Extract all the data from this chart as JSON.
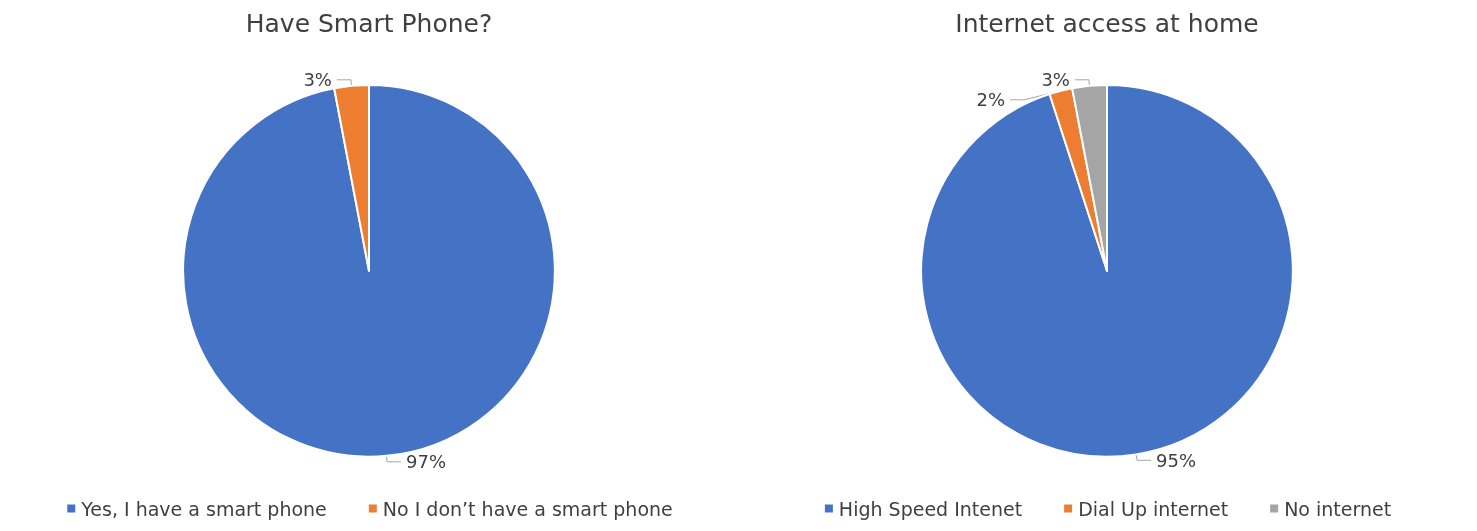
{
  "chart_data": [
    {
      "type": "pie",
      "title": "Have Smart Phone?",
      "categories": [
        "Yes, I have a smart phone",
        "No I don’t have a smart phone"
      ],
      "values": [
        97,
        3
      ],
      "colors": [
        "#4472c4",
        "#ed7d31"
      ],
      "value_labels": [
        "97%",
        "3%"
      ],
      "legend": "bottom"
    },
    {
      "type": "pie",
      "title": "Internet access at home",
      "categories": [
        "High Speed Intenet",
        "Dial Up internet",
        "No internet"
      ],
      "values": [
        95,
        2,
        3
      ],
      "colors": [
        "#4472c4",
        "#ed7d31",
        "#a5a5a5"
      ],
      "value_labels": [
        "95%",
        "2%",
        "3%"
      ],
      "legend": "bottom"
    }
  ]
}
